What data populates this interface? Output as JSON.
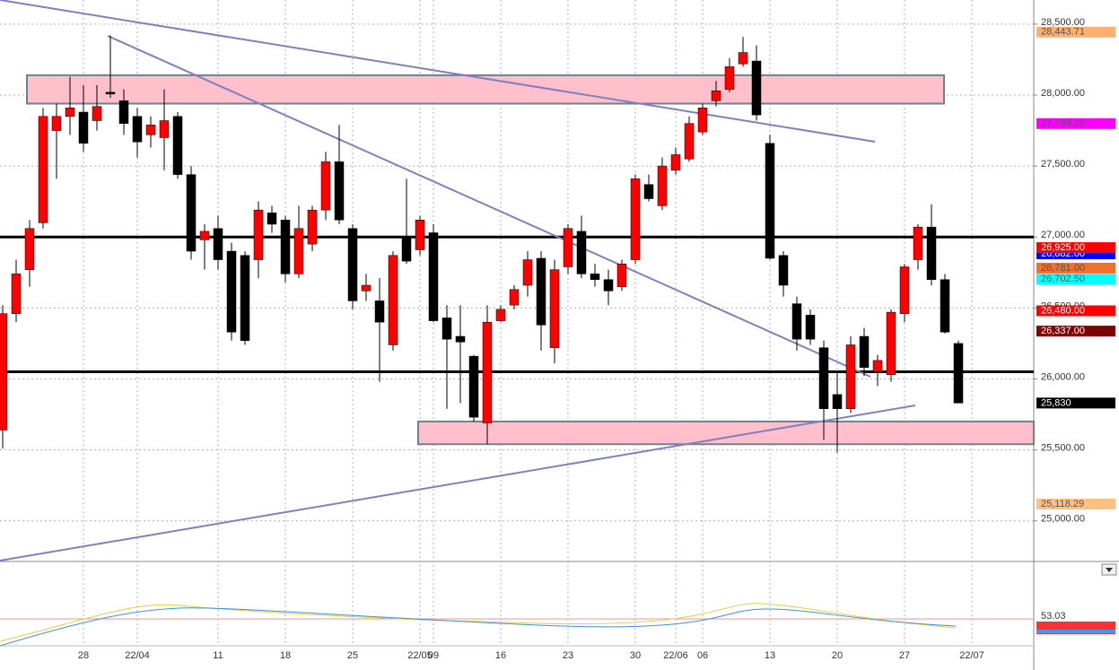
{
  "chart_data": {
    "type": "candlestick",
    "up_color": "#ff0000",
    "down_color": "#000000",
    "categories": [
      null,
      null,
      null,
      null,
      null,
      null,
      "28",
      null,
      null,
      null,
      "22/04",
      null,
      null,
      null,
      null,
      null,
      "11",
      null,
      null,
      null,
      null,
      "18",
      null,
      null,
      null,
      null,
      "25",
      null,
      null,
      null,
      null,
      "22/05",
      "09",
      null,
      null,
      null,
      null,
      "16",
      null,
      null,
      null,
      null,
      "23",
      null,
      null,
      null,
      null,
      "30",
      null,
      null,
      "22/06",
      null,
      "06",
      null,
      null,
      null,
      null,
      "13",
      null,
      null,
      null,
      null,
      "20",
      null,
      null,
      null,
      null,
      "27",
      null,
      null,
      null,
      null,
      "22/07"
    ],
    "open": [
      25640,
      26460,
      26770,
      27100,
      27750,
      27850,
      27880,
      27820,
      28020,
      27960,
      27850,
      27720,
      27700,
      27850,
      27440,
      26980,
      27060,
      26900,
      26870,
      26840,
      27170,
      27120,
      26740,
      26950,
      27190,
      27530,
      27060,
      26620,
      26550,
      26240,
      26990,
      26910,
      27030,
      26430,
      26300,
      26160,
      25690,
      26410,
      26520,
      26660,
      26850,
      26220,
      26790,
      27040,
      26740,
      26700,
      26650,
      26840,
      27370,
      27220,
      27470,
      27550,
      27740,
      27960,
      28040,
      28220,
      28240,
      27660,
      26870,
      26530,
      26450,
      26220,
      25890,
      25790,
      26300,
      26050,
      26030,
      26460,
      26840,
      27070,
      26700,
      26250,
      null
    ],
    "high": [
      26520,
      26840,
      27120,
      27910,
      27940,
      28130,
      28070,
      28070,
      28420,
      28040,
      27910,
      27850,
      28040,
      27880,
      27500,
      27090,
      27150,
      26960,
      26900,
      27250,
      27220,
      27150,
      27220,
      27220,
      27600,
      27790,
      27090,
      26740,
      26710,
      26900,
      27410,
      27150,
      27090,
      26520,
      26520,
      26170,
      26520,
      26520,
      26660,
      26900,
      26900,
      26840,
      27090,
      27150,
      26810,
      26770,
      26840,
      27440,
      27440,
      27560,
      27630,
      27850,
      27940,
      28100,
      28260,
      28410,
      28350,
      27720,
      26900,
      26580,
      26490,
      26270,
      26050,
      26300,
      26360,
      26170,
      26490,
      26810,
      27090,
      27230,
      26740,
      26270,
      null
    ],
    "low": [
      25510,
      26400,
      26650,
      27060,
      27410,
      27720,
      27600,
      27750,
      27980,
      27720,
      27560,
      27630,
      27470,
      27410,
      26840,
      26770,
      26770,
      26270,
      26240,
      26710,
      27030,
      26680,
      26710,
      26900,
      27120,
      27090,
      26490,
      26550,
      25980,
      26200,
      26810,
      26870,
      26400,
      25790,
      25830,
      25700,
      25540,
      26400,
      26490,
      26580,
      26200,
      26110,
      26740,
      26710,
      26650,
      26520,
      26620,
      26810,
      27250,
      27190,
      27440,
      27530,
      27720,
      27920,
      28020,
      28200,
      27820,
      26840,
      26580,
      26200,
      26240,
      25570,
      25480,
      25760,
      26020,
      25950,
      25980,
      26400,
      26770,
      26660,
      26320,
      25830,
      null
    ],
    "close": [
      26460,
      26740,
      27060,
      27850,
      27850,
      27910,
      27660,
      27920,
      28020,
      27800,
      27670,
      27790,
      27820,
      27440,
      26900,
      27040,
      26840,
      26330,
      26270,
      27190,
      27090,
      26740,
      27060,
      27190,
      27530,
      27120,
      26550,
      26660,
      26400,
      26870,
      26830,
      27120,
      26410,
      26280,
      26260,
      25730,
      26400,
      26490,
      26630,
      26840,
      26380,
      26770,
      27060,
      26740,
      26700,
      26620,
      26810,
      27410,
      27270,
      27500,
      27580,
      27800,
      27910,
      28030,
      28200,
      28300,
      27860,
      26850,
      26660,
      26280,
      26280,
      25790,
      25790,
      26240,
      26080,
      26130,
      26470,
      26790,
      27070,
      26700,
      26330,
      25830,
      null
    ],
    "ylim": [
      24720,
      28670
    ],
    "yticks": [
      {
        "value": 28500,
        "label": "28,500.00"
      },
      {
        "value": 28000,
        "label": "28,000.00"
      },
      {
        "value": 27500,
        "label": "27,500.00"
      },
      {
        "value": 27000,
        "label": "27,000.00"
      },
      {
        "value": 26500,
        "label": "26,500.00"
      },
      {
        "value": 26000,
        "label": "26,000.00"
      },
      {
        "value": 25500,
        "label": "25,500.00"
      },
      {
        "value": 25000,
        "label": "25,000.00"
      }
    ],
    "grid": true,
    "hlines": [
      27000,
      26050
    ],
    "bands": [
      {
        "from": 27940,
        "to": 28140
      },
      {
        "from": 25540,
        "to": 25700
      }
    ],
    "price_labels": [
      {
        "value": 28443.71,
        "label": "28,443.71",
        "color": "#ffb070"
      },
      {
        "value": 27799.2,
        "label": "27,799.20",
        "color": "#ff00ff"
      },
      {
        "value": 26882.0,
        "label": "26,882.00",
        "color": "#0000ff"
      },
      {
        "value": 26925.0,
        "label": "26,925.00",
        "color": "#ff0000"
      },
      {
        "value": 26781.0,
        "label": "26,781.00",
        "color": "#f07030"
      },
      {
        "value": 26702.5,
        "label": "26,702.50",
        "color": "#00ffff"
      },
      {
        "value": 26480.0,
        "label": "26,480.00",
        "color": "#ff0000"
      },
      {
        "value": 26337.0,
        "label": "26,337.00",
        "color": "#800000"
      },
      {
        "value": 25830,
        "label": "25,830",
        "color": "#000000"
      },
      {
        "value": 25118.29,
        "label": "25,118.29",
        "color": "#ffc080"
      }
    ],
    "sub_label": "53.03"
  }
}
